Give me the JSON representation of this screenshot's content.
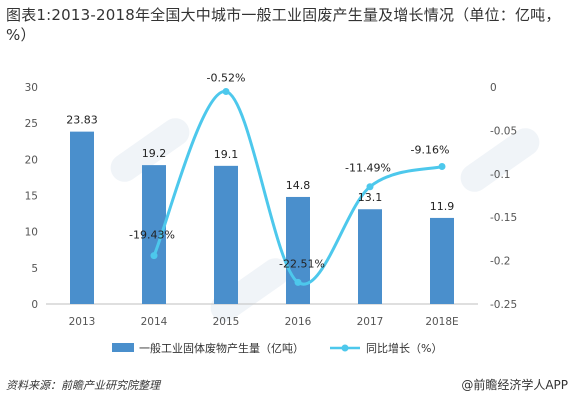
{
  "title": "图表1:2013-2018年全国大中城市一般工业固废产生量及增长情况（单位：亿吨，%）",
  "source": "资料来源：前瞻产业研究院整理",
  "brand": "@前瞻经济学人APP",
  "colors": {
    "bar": "#4A8FCC",
    "line": "#4DC8EC"
  },
  "chart_data": {
    "type": "bar+line",
    "categories": [
      "2013",
      "2014",
      "2015",
      "2016",
      "2017",
      "2018E"
    ],
    "series": [
      {
        "name": "一般工业固体废物产生量（亿吨）",
        "type": "bar",
        "axis": "left",
        "values": [
          23.83,
          19.2,
          19.1,
          14.8,
          13.1,
          11.9
        ],
        "labels": [
          "23.83",
          "19.2",
          "19.1",
          "14.8",
          "13.1",
          "11.9"
        ]
      },
      {
        "name": "同比增长（%）",
        "type": "line",
        "axis": "right",
        "values": [
          null,
          -0.1943,
          -0.0052,
          -0.2251,
          -0.1149,
          -0.0916
        ],
        "labels": [
          "",
          "-19.43%",
          "-0.52%",
          "-22.51%",
          "-11.49%",
          "-9.16%"
        ]
      }
    ],
    "y_left": {
      "lim": [
        0,
        30
      ],
      "ticks": [
        "0",
        "5",
        "10",
        "15",
        "20",
        "25",
        "30"
      ]
    },
    "y_right": {
      "lim": [
        -0.25,
        0
      ],
      "ticks": [
        "0",
        "-0.05",
        "-0.1",
        "-0.15",
        "-0.2",
        "-0.25"
      ]
    },
    "legend_position": "bottom",
    "grid": false
  }
}
